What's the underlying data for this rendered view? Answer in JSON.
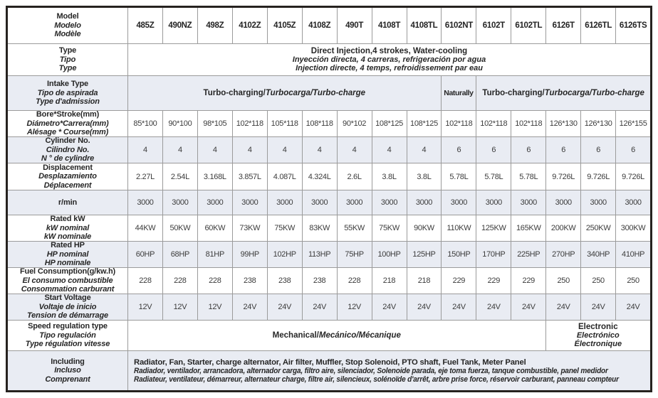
{
  "columns": [
    "485Z",
    "490NZ",
    "498Z",
    "4102Z",
    "4105Z",
    "4108Z",
    "490T",
    "4108T",
    "4108TL",
    "6102NT",
    "6102T",
    "6102TL",
    "6126T",
    "6126TL",
    "6126TS"
  ],
  "rows": {
    "model": {
      "label_en": "Model",
      "label_es": "Modelo",
      "label_fr": "Modèle"
    },
    "type": {
      "label_en": "Type",
      "label_es": "Tipo",
      "label_fr": "Type",
      "value_en": "Direct Injection,4 strokes, Water-cooling",
      "value_es": "Inyección directa, 4 carreras, refrigeración por agua",
      "value_fr": "Injection directe, 4 temps, refroidissement par eau"
    },
    "intake": {
      "label_en": "Intake Type",
      "label_es": "Tipo de aspirada",
      "label_fr": "Type d'admission",
      "turbo_en": "Turbo-charging/",
      "turbo_es": "Turbocarga/",
      "turbo_fr": "Turbo-charge",
      "naturally": "Naturally"
    },
    "bore": {
      "label_en": "Bore*Stroke(mm)",
      "label_es": "Diámetro*Carrera(mm)",
      "label_fr": "Alésage * Course(mm)",
      "values": [
        "85*100",
        "90*100",
        "98*105",
        "102*118",
        "105*118",
        "108*118",
        "90*102",
        "108*125",
        "108*125",
        "102*118",
        "102*118",
        "102*118",
        "126*130",
        "126*130",
        "126*155"
      ]
    },
    "cylinder": {
      "label_en": "Cylinder No.",
      "label_es": "Cilindro No.",
      "label_fr": "N ° de cylindre",
      "values": [
        "4",
        "4",
        "4",
        "4",
        "4",
        "4",
        "4",
        "4",
        "4",
        "6",
        "6",
        "6",
        "6",
        "6",
        "6"
      ]
    },
    "displacement": {
      "label_en": "Displacement",
      "label_es": "Desplazamiento",
      "label_fr": "Déplacement",
      "values": [
        "2.27L",
        "2.54L",
        "3.168L",
        "3.857L",
        "4.087L",
        "4.324L",
        "2.6L",
        "3.8L",
        "3.8L",
        "5.78L",
        "5.78L",
        "5.78L",
        "9.726L",
        "9.726L",
        "9.726L"
      ]
    },
    "rpm": {
      "label": "r/min",
      "values": [
        "3000",
        "3000",
        "3000",
        "3000",
        "3000",
        "3000",
        "3000",
        "3000",
        "3000",
        "3000",
        "3000",
        "3000",
        "3000",
        "3000",
        "3000"
      ]
    },
    "rated_kw": {
      "label_en": "Rated kW",
      "label_es": "kW nominal",
      "label_fr": "kW nominale",
      "values": [
        "44KW",
        "50KW",
        "60KW",
        "73KW",
        "75KW",
        "83KW",
        "55KW",
        "75KW",
        "90KW",
        "110KW",
        "125KW",
        "165KW",
        "200KW",
        "250KW",
        "300KW"
      ]
    },
    "rated_hp": {
      "label_en": "Rated HP",
      "label_es": "HP nominal",
      "label_fr": "HP nominale",
      "values": [
        "60HP",
        "68HP",
        "81HP",
        "99HP",
        "102HP",
        "113HP",
        "75HP",
        "100HP",
        "125HP",
        "150HP",
        "170HP",
        "225HP",
        "270HP",
        "340HP",
        "410HP"
      ]
    },
    "fuel": {
      "label_en": "Fuel Consumption(g/kw.h)",
      "label_es": "El consumo combustible",
      "label_fr": "Consommation carburant",
      "values": [
        "228",
        "228",
        "228",
        "238",
        "238",
        "238",
        "228",
        "218",
        "218",
        "229",
        "229",
        "229",
        "250",
        "250",
        "250"
      ]
    },
    "voltage": {
      "label_en": "Start Voltage",
      "label_es": "Voltaje de inicio",
      "label_fr": "Tension de démarrage",
      "values": [
        "12V",
        "12V",
        "12V",
        "24V",
        "24V",
        "24V",
        "12V",
        "24V",
        "24V",
        "24V",
        "24V",
        "24V",
        "24V",
        "24V",
        "24V"
      ]
    },
    "speed": {
      "label_en": "Speed regulation type",
      "label_es": "Tipo regulación",
      "label_fr": "Type régulation vitesse",
      "mech_en": "Mechanical/",
      "mech_es": "Mecánico/",
      "mech_fr": "Mécanique",
      "elec_en": "Electronic",
      "elec_es": "Electrónico",
      "elec_fr": "Électronique"
    },
    "including": {
      "label_en": "Including",
      "label_es": "Incluso",
      "label_fr": "Comprenant",
      "value_en": "Radiator, Fan, Starter, charge alternator, Air filter, Muffler, Stop Solenoid, PTO shaft, Fuel Tank, Meter Panel",
      "value_es": "Radiador, ventilador, arrancadora, alternador carga, filtro aire, silenciador, Solenoide parada, eje toma fuerza, tanque combustible, panel medidor",
      "value_fr": "Radiateur, ventilateur, démarreur, alternateur charge, filtre air, silencieux, solénoïde d'arrêt, arbre prise force, réservoir carburant, panneau compteur"
    }
  },
  "colors": {
    "row_alt_bg": "#e9ecf3",
    "grid_line": "#9b9b9b",
    "outer_border": "#26221f",
    "label_text": "#262626",
    "value_text": "#3c3c3c"
  }
}
